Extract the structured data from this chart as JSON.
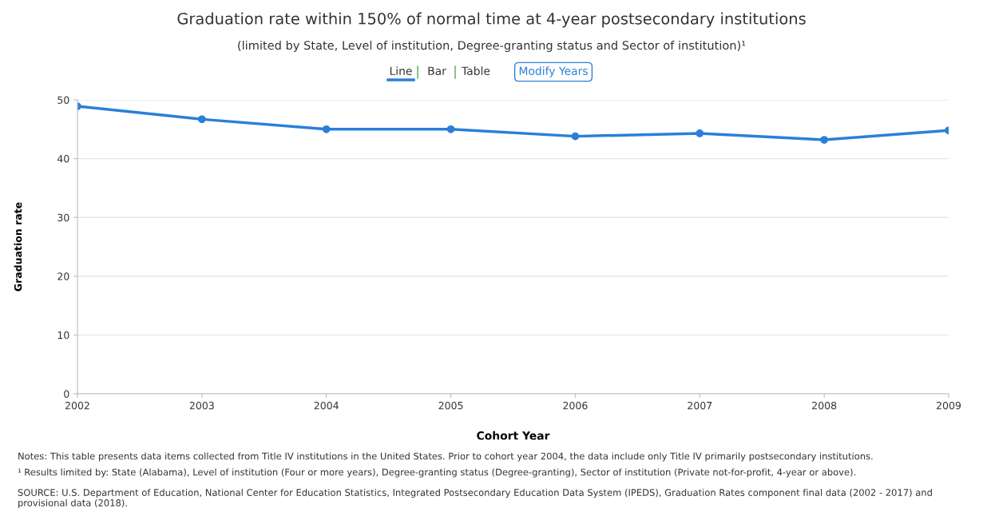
{
  "chart_data": {
    "type": "line",
    "title": "Graduation rate within 150% of normal time at 4-year postsecondary institutions",
    "subtitle": "(limited by State, Level of institution, Degree-granting status and Sector of institution)¹",
    "xlabel": "Cohort Year",
    "ylabel": "Graduation rate",
    "x": [
      2002,
      2003,
      2004,
      2005,
      2006,
      2007,
      2008,
      2009
    ],
    "series": [
      {
        "color": "#2a7fd9",
        "values": [
          48.9,
          46.7,
          45.0,
          45.0,
          43.8,
          44.3,
          43.2,
          44.8
        ]
      }
    ],
    "xlim": [
      2002,
      2009
    ],
    "xticks": [
      2002,
      2003,
      2004,
      2005,
      2006,
      2007,
      2008,
      2009
    ],
    "ylim": [
      0,
      50
    ],
    "yticks": [
      0,
      10,
      20,
      30,
      40,
      50
    ],
    "grid": "y",
    "marker": "circle",
    "line_style": "solid",
    "legend": false,
    "annotations": [
      "Line",
      "Bar",
      "Table",
      "Modify Years",
      "Notes: This table presents data items collected from Title IV institutions in the United States. Prior to cohort year 2004, the data include only Title IV primarily postsecondary institutions.",
      "¹ Results limited by: State (Alabama), Level of institution (Four or more years), Degree-granting status (Degree-granting), Sector of institution (Private not-for-profit, 4-year or above).",
      "SOURCE: U.S. Department of Education, National Center for Education Statistics, Integrated Postsecondary Education Data System (IPEDS), Graduation Rates component final data (2002 - 2017) and provisional data (2018)."
    ]
  }
}
